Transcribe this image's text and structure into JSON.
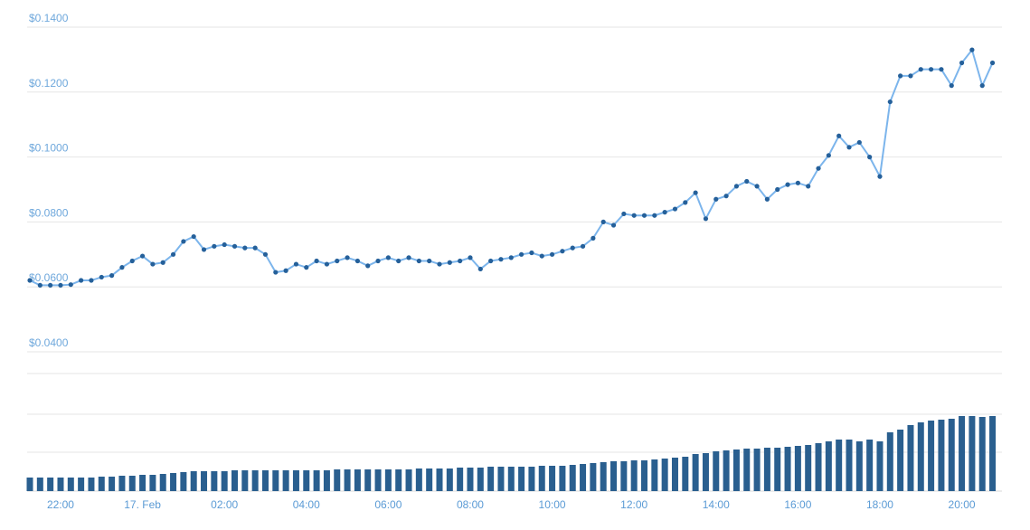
{
  "chart_data": {
    "type": "line",
    "categories": [
      null,
      null,
      null,
      "22:00",
      null,
      null,
      null,
      null,
      null,
      null,
      null,
      "17. Feb",
      null,
      null,
      null,
      null,
      null,
      null,
      null,
      "02:00",
      null,
      null,
      null,
      null,
      null,
      null,
      null,
      "04:00",
      null,
      null,
      null,
      null,
      null,
      null,
      null,
      "06:00",
      null,
      null,
      null,
      null,
      null,
      null,
      null,
      "08:00",
      null,
      null,
      null,
      null,
      null,
      null,
      null,
      "10:00",
      null,
      null,
      null,
      null,
      null,
      null,
      null,
      "12:00",
      null,
      null,
      null,
      null,
      null,
      null,
      null,
      "14:00",
      null,
      null,
      null,
      null,
      null,
      null,
      null,
      "16:00",
      null,
      null,
      null,
      null,
      null,
      null,
      null,
      "18:00",
      null,
      null,
      null,
      null,
      null,
      null,
      null,
      "20:00",
      null,
      null,
      null
    ],
    "series": [
      {
        "type": "line",
        "color": "#25609a",
        "line_color": "#7cb5ec",
        "values": [
          0.062,
          0.0605,
          0.0605,
          0.0605,
          0.0607,
          0.062,
          0.062,
          0.063,
          0.0635,
          0.066,
          0.068,
          0.0695,
          0.067,
          0.0675,
          0.07,
          0.074,
          0.0755,
          0.0715,
          0.0725,
          0.073,
          0.0725,
          0.072,
          0.072,
          0.07,
          0.0645,
          0.065,
          0.067,
          0.066,
          0.068,
          0.067,
          0.068,
          0.069,
          0.068,
          0.0665,
          0.068,
          0.069,
          0.068,
          0.069,
          0.068,
          0.068,
          0.067,
          0.0675,
          0.068,
          0.069,
          0.0655,
          0.068,
          0.0685,
          0.069,
          0.07,
          0.0705,
          0.0695,
          0.07,
          0.071,
          0.072,
          0.0725,
          0.075,
          0.08,
          0.079,
          0.0825,
          0.082,
          0.082,
          0.082,
          0.083,
          0.084,
          0.086,
          0.089,
          0.081,
          0.087,
          0.088,
          0.091,
          0.0925,
          0.091,
          0.087,
          0.09,
          0.0915,
          0.092,
          0.091,
          0.0965,
          0.1005,
          0.1065,
          0.103,
          0.1045,
          0.1,
          0.094,
          0.117,
          0.125,
          0.125,
          0.127,
          0.127,
          0.127,
          0.122,
          0.129,
          0.133,
          0.122,
          0.129
        ]
      },
      {
        "type": "bar",
        "axis": "y2",
        "color": "#2a5f8f",
        "values": [
          15,
          15,
          15,
          15,
          15,
          15,
          15,
          16,
          16,
          17,
          17,
          18,
          18,
          19,
          20,
          21,
          22,
          22,
          22,
          22,
          23,
          23,
          23,
          23,
          23,
          23,
          23,
          23,
          23,
          23,
          24,
          24,
          24,
          24,
          24,
          24,
          24,
          24,
          25,
          25,
          25,
          25,
          26,
          26,
          26,
          27,
          27,
          27,
          27,
          27,
          28,
          28,
          28,
          29,
          30,
          31,
          32,
          33,
          33,
          34,
          34,
          35,
          36,
          37,
          38,
          41,
          42,
          44,
          45,
          46,
          47,
          47,
          48,
          48,
          49,
          50,
          51,
          53,
          55,
          57,
          57,
          55,
          57,
          55,
          65,
          68,
          73,
          76,
          78,
          79,
          80,
          83,
          83,
          82,
          83
        ]
      }
    ],
    "ylim": [
      0.04,
      0.14
    ],
    "yticks": [
      {
        "value": 0.04,
        "label": "$0.0400"
      },
      {
        "value": 0.06,
        "label": "$0.0600"
      },
      {
        "value": 0.08,
        "label": "$0.0800"
      },
      {
        "value": 0.1,
        "label": "$0.1000"
      },
      {
        "value": 0.12,
        "label": "$0.1200"
      },
      {
        "value": 0.14,
        "label": "$0.1400"
      }
    ],
    "y2lim": [
      0,
      100
    ],
    "grid": true
  }
}
